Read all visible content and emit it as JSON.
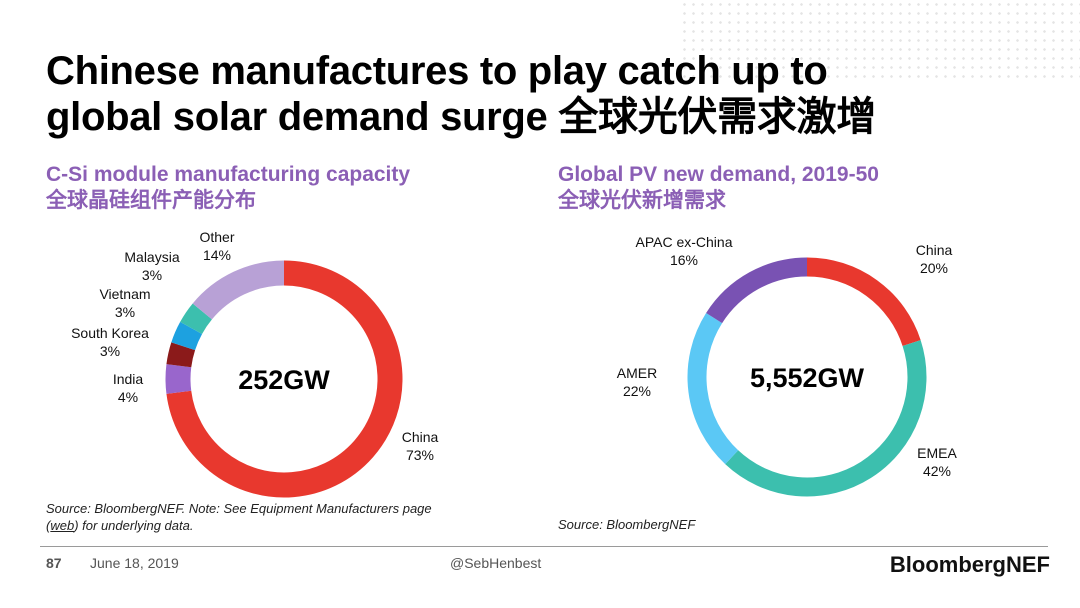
{
  "title_line1": "Chinese manufactures to play catch up to",
  "title_line2": "global solar demand surge 全球光伏需求激增",
  "left": {
    "subtitle_en": "C-Si module manufacturing capacity",
    "subtitle_zh": "全球晶硅组件产能分布",
    "source_prefix": "Source: BloombergNEF. Note: See Equipment Manufacturers page",
    "source_link": "web",
    "source_suffix": " for underlying data."
  },
  "right": {
    "subtitle_en": "Global PV new demand, 2019-50",
    "subtitle_zh": "全球光伏新增需求",
    "source": "Source: BloombergNEF"
  },
  "footer": {
    "page": "87",
    "date": "June 18, 2019",
    "handle": "@SebHenbest",
    "logo": "BloombergNEF"
  },
  "chart_data": [
    {
      "type": "pie",
      "donut": true,
      "center_label": "252GW",
      "slices": [
        {
          "name": "China",
          "value": 73,
          "label": "73%",
          "color": "#e8382e"
        },
        {
          "name": "India",
          "value": 4,
          "label": "4%",
          "color": "#9966cc"
        },
        {
          "name": "South Korea",
          "value": 3,
          "label": "3%",
          "color": "#8b1a1a"
        },
        {
          "name": "Vietnam",
          "value": 3,
          "label": "3%",
          "color": "#1da1e0"
        },
        {
          "name": "Malaysia",
          "value": 3,
          "label": "3%",
          "color": "#3cbfae"
        },
        {
          "name": "Other",
          "value": 14,
          "label": "14%",
          "color": "#b8a1d6"
        }
      ]
    },
    {
      "type": "pie",
      "donut": true,
      "center_label": "5,552GW",
      "slices": [
        {
          "name": "China",
          "value": 20,
          "label": "20%",
          "color": "#e8382e"
        },
        {
          "name": "EMEA",
          "value": 42,
          "label": "42%",
          "color": "#3cbfae"
        },
        {
          "name": "AMER",
          "value": 22,
          "label": "22%",
          "color": "#5bc8f5"
        },
        {
          "name": "APAC ex-China",
          "value": 16,
          "label": "16%",
          "color": "#7952b3"
        }
      ]
    }
  ]
}
